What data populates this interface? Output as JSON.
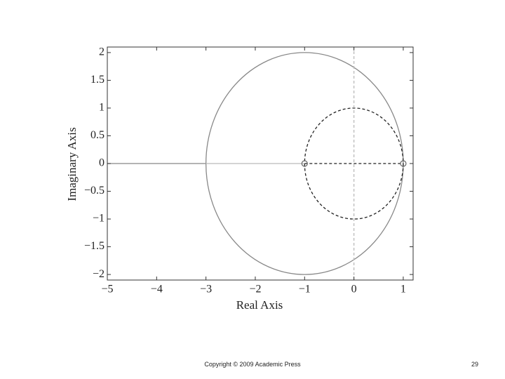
{
  "chart_data": {
    "type": "line",
    "xlabel": "Real Axis",
    "ylabel": "Imaginary Axis",
    "xlim": [
      -5,
      1.2
    ],
    "ylim": [
      -2.1,
      2.1
    ],
    "xticks": [
      {
        "value": -5,
        "label": "−5"
      },
      {
        "value": -4,
        "label": "−4"
      },
      {
        "value": -3,
        "label": "−3"
      },
      {
        "value": -2,
        "label": "−2"
      },
      {
        "value": -1,
        "label": "−1"
      },
      0,
      1
    ],
    "yticks": [
      {
        "value": -2,
        "label": "−2"
      },
      {
        "value": -1.5,
        "label": "−1.5"
      },
      {
        "value": -1,
        "label": "−1"
      },
      {
        "value": -0.5,
        "label": "−0.5"
      },
      0,
      0.5,
      1,
      1.5,
      2
    ],
    "circles": [
      {
        "center": [
          -1,
          0
        ],
        "radius": 2,
        "color": "#888888",
        "dashed": false
      },
      {
        "center": [
          0,
          0
        ],
        "radius": 1,
        "color": "#222222",
        "dashed": true
      }
    ],
    "segments": [
      {
        "x": [
          -5,
          -3
        ],
        "y": [
          0,
          0
        ],
        "color": "#888888",
        "dashed": false
      },
      {
        "x": [
          -3,
          -1
        ],
        "y": [
          0,
          0
        ],
        "color": "#bbbbbb",
        "dashed": false
      },
      {
        "x": [
          -1,
          1
        ],
        "y": [
          0,
          0
        ],
        "color": "#222222",
        "dashed": true
      },
      {
        "x": [
          0,
          0
        ],
        "y": [
          -2.1,
          2.1
        ],
        "color": "#bbbbbb",
        "dashed": true
      }
    ],
    "zeros": {
      "x": [
        -1,
        1
      ],
      "y": [
        0,
        0
      ],
      "color": "#666666"
    }
  },
  "footer": {
    "copyright": "Copyright © 2009 Academic Press",
    "page": "29"
  }
}
